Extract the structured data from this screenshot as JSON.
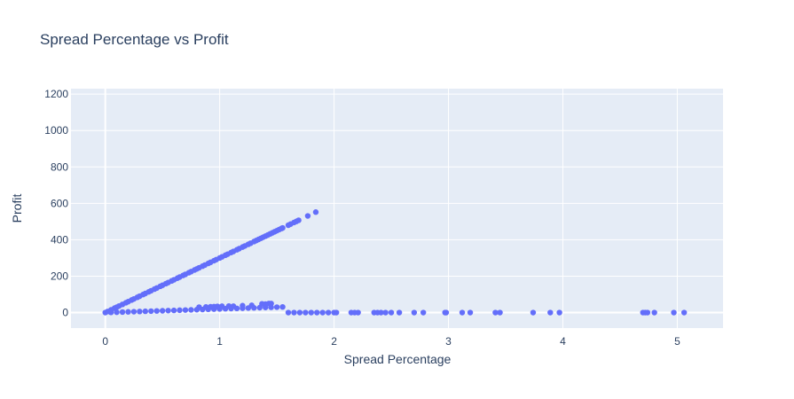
{
  "chart_data": {
    "type": "scatter",
    "title": "Spread Percentage vs Profit",
    "xlabel": "Spread Percentage",
    "ylabel": "Profit",
    "xlim": [
      -0.3,
      5.4
    ],
    "ylim": [
      -85,
      1230
    ],
    "xticks": [
      "0",
      "1",
      "2",
      "3",
      "4",
      "5"
    ],
    "xtick_values": [
      0,
      1,
      2,
      3,
      4,
      5
    ],
    "yticks": [
      "0",
      "200",
      "400",
      "600",
      "800",
      "1000",
      "1200"
    ],
    "ytick_values": [
      0,
      200,
      400,
      600,
      800,
      1000,
      1200
    ],
    "grid": true,
    "legend": "none",
    "colors": {
      "marker": "#636efa",
      "plot_bg": "#e5ecf6",
      "grid": "#ffffff",
      "text": "#2a3f5f"
    },
    "series": [
      {
        "x": [
          0,
          0.02,
          0.05,
          0.08,
          0.1,
          0.12,
          0.15,
          0.18,
          0.2,
          0.23,
          0.25,
          0.28,
          0.3,
          0.33,
          0.35,
          0.38,
          0.4,
          0.43,
          0.45,
          0.48,
          0.5,
          0.53,
          0.55,
          0.58,
          0.6,
          0.63,
          0.65,
          0.68,
          0.7,
          0.73,
          0.75,
          0.78,
          0.8,
          0.82,
          0.85,
          0.87,
          0.9,
          0.92,
          0.95,
          0.97,
          1.0,
          1.02,
          1.05,
          1.07,
          1.1,
          1.12,
          1.15,
          1.17,
          1.2,
          1.22,
          1.25,
          1.27,
          1.3,
          1.32,
          1.34,
          1.36,
          1.38,
          1.4,
          1.42,
          1.44,
          1.46,
          1.48,
          1.5,
          1.52,
          1.54,
          1.55,
          1.6,
          1.62,
          1.65,
          1.67,
          1.69,
          1.77,
          1.84,
          0.05,
          0.1,
          0.15,
          0.2,
          0.25,
          0.3,
          0.35,
          0.4,
          0.45,
          0.5,
          0.55,
          0.6,
          0.65,
          0.7,
          0.75,
          0.8,
          0.85,
          0.9,
          0.95,
          1.0,
          1.05,
          1.1,
          1.15,
          1.2,
          1.25,
          1.3,
          1.35,
          1.4,
          1.45,
          1.5,
          1.55,
          0.82,
          0.88,
          0.92,
          0.95,
          0.98,
          1.02,
          1.08,
          1.12,
          1.2,
          1.28,
          1.37,
          1.4,
          1.43,
          1.45,
          1.6,
          1.65,
          1.7,
          1.75,
          1.8,
          1.85,
          1.9,
          1.95,
          2.0,
          2.02,
          2.15,
          2.18,
          2.21,
          2.35,
          2.38,
          2.41,
          2.45,
          2.5,
          2.57,
          2.7,
          2.78,
          2.97,
          2.98,
          3.12,
          3.19,
          3.41,
          3.45,
          3.74,
          3.89,
          3.97,
          4.7,
          4.72,
          4.74,
          4.8,
          4.97,
          5.06
        ],
        "y": [
          0,
          6,
          15,
          24,
          30,
          36,
          45,
          54,
          60,
          69,
          75,
          84,
          90,
          99,
          105,
          114,
          120,
          129,
          135,
          144,
          150,
          159,
          165,
          174,
          180,
          189,
          195,
          204,
          210,
          219,
          225,
          234,
          240,
          246,
          255,
          261,
          270,
          276,
          285,
          291,
          300,
          306,
          315,
          321,
          330,
          336,
          345,
          351,
          360,
          366,
          375,
          381,
          390,
          396,
          402,
          408,
          414,
          420,
          426,
          432,
          438,
          444,
          450,
          456,
          462,
          465,
          480,
          486,
          495,
          501,
          507,
          531,
          552,
          1,
          2,
          3,
          4,
          5,
          6,
          7,
          8,
          9,
          10,
          11,
          12,
          13,
          14,
          15,
          16,
          17,
          18,
          19,
          20,
          21,
          22,
          23,
          24,
          25,
          26,
          27,
          28,
          29,
          30,
          31,
          30,
          31,
          32,
          33,
          34,
          35,
          36,
          35,
          38,
          40,
          48,
          47,
          50,
          50,
          0,
          0,
          0,
          0,
          0,
          0,
          0,
          0,
          0,
          0,
          0,
          0,
          0,
          0,
          0,
          0,
          0,
          0,
          0,
          0,
          0,
          0,
          0,
          0,
          0,
          0,
          0,
          0,
          0,
          0,
          0,
          0,
          0,
          0,
          0,
          0
        ]
      }
    ]
  }
}
